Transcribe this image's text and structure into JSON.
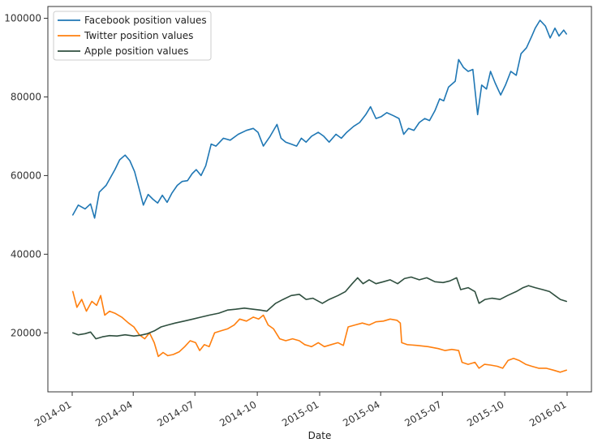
{
  "chart_data": {
    "type": "line",
    "title": "",
    "xlabel": "Date",
    "ylabel": "",
    "xlim": [
      "2014-01-01",
      "2016-01-01"
    ],
    "ylim": [
      5000,
      103000
    ],
    "x_ticks": [
      "2014-01",
      "2014-04",
      "2014-07",
      "2014-10",
      "2015-01",
      "2015-04",
      "2015-07",
      "2015-10",
      "2016-01"
    ],
    "y_ticks": [
      20000,
      40000,
      60000,
      80000,
      100000
    ],
    "grid": false,
    "legend_position": "top-left",
    "series": [
      {
        "name": "Facebook position values",
        "color": "#1f77b4",
        "points": [
          [
            "2014-01-02",
            50000
          ],
          [
            "2014-01-10",
            52500
          ],
          [
            "2014-01-20",
            51500
          ],
          [
            "2014-01-28",
            52800
          ],
          [
            "2014-02-03",
            49200
          ],
          [
            "2014-02-10",
            55800
          ],
          [
            "2014-02-20",
            57500
          ],
          [
            "2014-03-05",
            61500
          ],
          [
            "2014-03-12",
            64000
          ],
          [
            "2014-03-20",
            65200
          ],
          [
            "2014-03-27",
            63800
          ],
          [
            "2014-04-03",
            61000
          ],
          [
            "2014-04-10",
            56500
          ],
          [
            "2014-04-16",
            52500
          ],
          [
            "2014-04-23",
            55200
          ],
          [
            "2014-04-30",
            54000
          ],
          [
            "2014-05-07",
            53000
          ],
          [
            "2014-05-14",
            55000
          ],
          [
            "2014-05-21",
            53200
          ],
          [
            "2014-05-28",
            55500
          ],
          [
            "2014-06-05",
            57500
          ],
          [
            "2014-06-12",
            58500
          ],
          [
            "2014-06-20",
            58700
          ],
          [
            "2014-06-27",
            60500
          ],
          [
            "2014-07-03",
            61500
          ],
          [
            "2014-07-10",
            60000
          ],
          [
            "2014-07-17",
            62500
          ],
          [
            "2014-07-25",
            68000
          ],
          [
            "2014-08-01",
            67500
          ],
          [
            "2014-08-12",
            69500
          ],
          [
            "2014-08-22",
            69000
          ],
          [
            "2014-09-03",
            70500
          ],
          [
            "2014-09-15",
            71500
          ],
          [
            "2014-09-25",
            72000
          ],
          [
            "2014-10-02",
            71000
          ],
          [
            "2014-10-10",
            67500
          ],
          [
            "2014-10-20",
            70000
          ],
          [
            "2014-10-30",
            73000
          ],
          [
            "2014-11-05",
            69500
          ],
          [
            "2014-11-12",
            68500
          ],
          [
            "2014-11-20",
            68000
          ],
          [
            "2014-11-28",
            67500
          ],
          [
            "2014-12-05",
            69500
          ],
          [
            "2014-12-12",
            68500
          ],
          [
            "2014-12-20",
            70000
          ],
          [
            "2014-12-30",
            71000
          ],
          [
            "2015-01-07",
            70000
          ],
          [
            "2015-01-15",
            68500
          ],
          [
            "2015-01-25",
            70500
          ],
          [
            "2015-02-02",
            69500
          ],
          [
            "2015-02-10",
            71000
          ],
          [
            "2015-02-20",
            72500
          ],
          [
            "2015-03-01",
            73500
          ],
          [
            "2015-03-10",
            75500
          ],
          [
            "2015-03-17",
            77500
          ],
          [
            "2015-03-25",
            74500
          ],
          [
            "2015-04-02",
            75000
          ],
          [
            "2015-04-10",
            76000
          ],
          [
            "2015-04-20",
            75200
          ],
          [
            "2015-04-28",
            74500
          ],
          [
            "2015-05-05",
            70500
          ],
          [
            "2015-05-12",
            72000
          ],
          [
            "2015-05-20",
            71500
          ],
          [
            "2015-05-28",
            73500
          ],
          [
            "2015-06-05",
            74500
          ],
          [
            "2015-06-12",
            74000
          ],
          [
            "2015-06-20",
            76500
          ],
          [
            "2015-06-27",
            79500
          ],
          [
            "2015-07-03",
            79000
          ],
          [
            "2015-07-10",
            82500
          ],
          [
            "2015-07-20",
            84000
          ],
          [
            "2015-07-25",
            89500
          ],
          [
            "2015-08-01",
            87500
          ],
          [
            "2015-08-08",
            86500
          ],
          [
            "2015-08-15",
            87000
          ],
          [
            "2015-08-22",
            75500
          ],
          [
            "2015-08-28",
            83000
          ],
          [
            "2015-09-04",
            82000
          ],
          [
            "2015-09-10",
            86500
          ],
          [
            "2015-09-17",
            83500
          ],
          [
            "2015-09-25",
            80500
          ],
          [
            "2015-10-02",
            83000
          ],
          [
            "2015-10-10",
            86500
          ],
          [
            "2015-10-18",
            85500
          ],
          [
            "2015-10-25",
            91000
          ],
          [
            "2015-11-02",
            92500
          ],
          [
            "2015-11-10",
            95500
          ],
          [
            "2015-11-15",
            97500
          ],
          [
            "2015-11-22",
            99500
          ],
          [
            "2015-11-30",
            98000
          ],
          [
            "2015-12-07",
            95000
          ],
          [
            "2015-12-14",
            97500
          ],
          [
            "2015-12-20",
            95500
          ],
          [
            "2015-12-27",
            97000
          ],
          [
            "2015-12-31",
            96000
          ]
        ]
      },
      {
        "name": "Twitter position values",
        "color": "#ff7f0e",
        "points": [
          [
            "2014-01-02",
            30500
          ],
          [
            "2014-01-08",
            26500
          ],
          [
            "2014-01-15",
            28500
          ],
          [
            "2014-01-22",
            25500
          ],
          [
            "2014-01-30",
            28000
          ],
          [
            "2014-02-06",
            27000
          ],
          [
            "2014-02-12",
            29500
          ],
          [
            "2014-02-18",
            24500
          ],
          [
            "2014-02-25",
            25500
          ],
          [
            "2014-03-05",
            25000
          ],
          [
            "2014-03-15",
            24000
          ],
          [
            "2014-03-25",
            22500
          ],
          [
            "2014-04-02",
            21500
          ],
          [
            "2014-04-10",
            19500
          ],
          [
            "2014-04-18",
            18500
          ],
          [
            "2014-04-25",
            20000
          ],
          [
            "2014-05-02",
            17500
          ],
          [
            "2014-05-08",
            14000
          ],
          [
            "2014-05-15",
            15000
          ],
          [
            "2014-05-22",
            14200
          ],
          [
            "2014-05-30",
            14500
          ],
          [
            "2014-06-08",
            15200
          ],
          [
            "2014-06-16",
            16500
          ],
          [
            "2014-06-24",
            18000
          ],
          [
            "2014-07-02",
            17500
          ],
          [
            "2014-07-08",
            15500
          ],
          [
            "2014-07-15",
            17000
          ],
          [
            "2014-07-22",
            16500
          ],
          [
            "2014-07-30",
            20000
          ],
          [
            "2014-08-08",
            20500
          ],
          [
            "2014-08-18",
            21000
          ],
          [
            "2014-08-28",
            22000
          ],
          [
            "2014-09-05",
            23500
          ],
          [
            "2014-09-15",
            23000
          ],
          [
            "2014-09-25",
            24000
          ],
          [
            "2014-10-03",
            23500
          ],
          [
            "2014-10-10",
            24500
          ],
          [
            "2014-10-17",
            22000
          ],
          [
            "2014-10-25",
            21000
          ],
          [
            "2014-11-03",
            18500
          ],
          [
            "2014-11-12",
            18000
          ],
          [
            "2014-11-22",
            18500
          ],
          [
            "2014-12-02",
            18000
          ],
          [
            "2014-12-10",
            17000
          ],
          [
            "2014-12-20",
            16500
          ],
          [
            "2014-12-30",
            17500
          ],
          [
            "2015-01-08",
            16500
          ],
          [
            "2015-01-18",
            17000
          ],
          [
            "2015-01-28",
            17500
          ],
          [
            "2015-02-05",
            16800
          ],
          [
            "2015-02-12",
            21500
          ],
          [
            "2015-02-22",
            22000
          ],
          [
            "2015-03-05",
            22500
          ],
          [
            "2015-03-15",
            22000
          ],
          [
            "2015-03-25",
            22800
          ],
          [
            "2015-04-05",
            23000
          ],
          [
            "2015-04-15",
            23500
          ],
          [
            "2015-04-25",
            23200
          ],
          [
            "2015-04-30",
            22500
          ],
          [
            "2015-05-02",
            17500
          ],
          [
            "2015-05-10",
            17000
          ],
          [
            "2015-05-25",
            16800
          ],
          [
            "2015-06-10",
            16500
          ],
          [
            "2015-06-25",
            16000
          ],
          [
            "2015-07-05",
            15500
          ],
          [
            "2015-07-15",
            15800
          ],
          [
            "2015-07-25",
            15500
          ],
          [
            "2015-07-30",
            12500
          ],
          [
            "2015-08-08",
            12000
          ],
          [
            "2015-08-18",
            12500
          ],
          [
            "2015-08-24",
            11000
          ],
          [
            "2015-09-01",
            12000
          ],
          [
            "2015-09-10",
            11800
          ],
          [
            "2015-09-20",
            11500
          ],
          [
            "2015-09-28",
            11000
          ],
          [
            "2015-10-06",
            13000
          ],
          [
            "2015-10-14",
            13500
          ],
          [
            "2015-10-22",
            13000
          ],
          [
            "2015-11-01",
            12000
          ],
          [
            "2015-11-10",
            11500
          ],
          [
            "2015-11-20",
            11000
          ],
          [
            "2015-12-01",
            11000
          ],
          [
            "2015-12-12",
            10500
          ],
          [
            "2015-12-22",
            10000
          ],
          [
            "2015-12-31",
            10500
          ]
        ]
      },
      {
        "name": "Apple position values",
        "color": "#2f4f3f",
        "points": [
          [
            "2014-01-02",
            20000
          ],
          [
            "2014-01-10",
            19500
          ],
          [
            "2014-01-20",
            19800
          ],
          [
            "2014-01-28",
            20200
          ],
          [
            "2014-02-05",
            18500
          ],
          [
            "2014-02-15",
            19000
          ],
          [
            "2014-02-25",
            19300
          ],
          [
            "2014-03-08",
            19200
          ],
          [
            "2014-03-20",
            19500
          ],
          [
            "2014-04-02",
            19200
          ],
          [
            "2014-04-12",
            19400
          ],
          [
            "2014-04-22",
            19800
          ],
          [
            "2014-05-02",
            20500
          ],
          [
            "2014-05-12",
            21500
          ],
          [
            "2014-05-22",
            22000
          ],
          [
            "2014-06-02",
            22500
          ],
          [
            "2014-06-15",
            23000
          ],
          [
            "2014-06-28",
            23500
          ],
          [
            "2014-07-10",
            24000
          ],
          [
            "2014-07-22",
            24500
          ],
          [
            "2014-08-05",
            25000
          ],
          [
            "2014-08-18",
            25800
          ],
          [
            "2014-08-30",
            26000
          ],
          [
            "2014-09-12",
            26300
          ],
          [
            "2014-09-25",
            26000
          ],
          [
            "2014-10-05",
            25800
          ],
          [
            "2014-10-15",
            25500
          ],
          [
            "2014-10-28",
            27500
          ],
          [
            "2014-11-08",
            28500
          ],
          [
            "2014-11-20",
            29500
          ],
          [
            "2014-12-02",
            29800
          ],
          [
            "2014-12-12",
            28500
          ],
          [
            "2014-12-22",
            28800
          ],
          [
            "2015-01-05",
            27500
          ],
          [
            "2015-01-15",
            28500
          ],
          [
            "2015-01-28",
            29500
          ],
          [
            "2015-02-08",
            30500
          ],
          [
            "2015-02-18",
            32500
          ],
          [
            "2015-02-26",
            34000
          ],
          [
            "2015-03-06",
            32500
          ],
          [
            "2015-03-15",
            33500
          ],
          [
            "2015-03-25",
            32500
          ],
          [
            "2015-04-05",
            33000
          ],
          [
            "2015-04-15",
            33500
          ],
          [
            "2015-04-26",
            32500
          ],
          [
            "2015-05-06",
            33800
          ],
          [
            "2015-05-16",
            34200
          ],
          [
            "2015-05-28",
            33500
          ],
          [
            "2015-06-08",
            34000
          ],
          [
            "2015-06-20",
            33000
          ],
          [
            "2015-07-02",
            32800
          ],
          [
            "2015-07-12",
            33200
          ],
          [
            "2015-07-22",
            34000
          ],
          [
            "2015-07-28",
            31000
          ],
          [
            "2015-08-08",
            31500
          ],
          [
            "2015-08-18",
            30500
          ],
          [
            "2015-08-24",
            27500
          ],
          [
            "2015-09-02",
            28500
          ],
          [
            "2015-09-12",
            28800
          ],
          [
            "2015-09-24",
            28500
          ],
          [
            "2015-10-05",
            29500
          ],
          [
            "2015-10-18",
            30500
          ],
          [
            "2015-10-28",
            31500
          ],
          [
            "2015-11-05",
            32000
          ],
          [
            "2015-11-15",
            31500
          ],
          [
            "2015-11-26",
            31000
          ],
          [
            "2015-12-06",
            30500
          ],
          [
            "2015-12-14",
            29500
          ],
          [
            "2015-12-22",
            28500
          ],
          [
            "2015-12-31",
            28000
          ]
        ]
      }
    ]
  }
}
